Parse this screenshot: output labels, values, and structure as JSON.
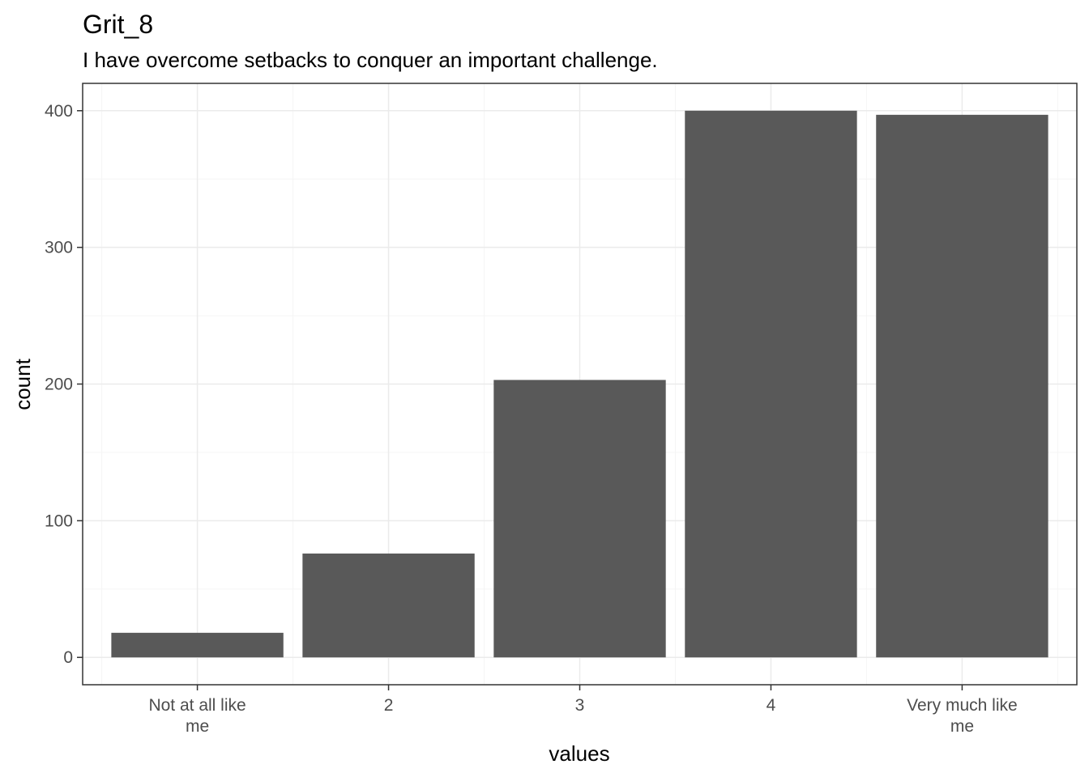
{
  "chart_data": {
    "type": "bar",
    "title": "Grit_8",
    "subtitle": "I have overcome setbacks to conquer an important challenge.",
    "xlabel": "values",
    "ylabel": "count",
    "categories": [
      [
        "Not at all like",
        "me"
      ],
      [
        "2"
      ],
      [
        "3"
      ],
      [
        "4"
      ],
      [
        "Very much like",
        "me"
      ]
    ],
    "values": [
      18,
      76,
      203,
      400,
      397
    ],
    "ylim": [
      -20,
      420
    ],
    "yticks": [
      0,
      100,
      200,
      300,
      400
    ],
    "grid": true,
    "bar_color": "#595959",
    "grid_major_color": "#ebebeb",
    "grid_minor_color": "#f5f5f5",
    "panel_border_color": "#333333"
  }
}
